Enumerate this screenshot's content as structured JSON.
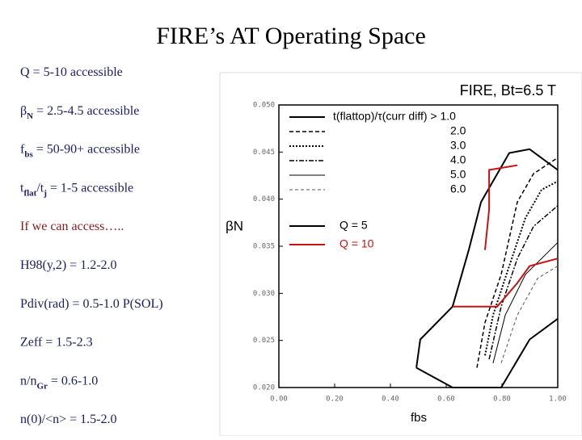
{
  "title": "FIRE’s AT Operating Space",
  "items": [
    {
      "color": "#1b1b6b",
      "parts": [
        {
          "text": "Q = 5-10 accessible"
        }
      ]
    },
    {
      "color": "#1b1b6b",
      "parts": [
        {
          "text": "β"
        },
        {
          "text": "N",
          "sub": true
        },
        {
          "text": " = 2.5-4.5 accessible"
        }
      ]
    },
    {
      "color": "#1b1b6b",
      "parts": [
        {
          "text": "f"
        },
        {
          "text": "bs",
          "sub": true
        },
        {
          "text": " = 50-90+ accessible"
        }
      ]
    },
    {
      "color": "#1b1b6b",
      "parts": [
        {
          "text": "t"
        },
        {
          "text": "flat",
          "sub": true
        },
        {
          "text": "/t"
        },
        {
          "text": "j",
          "sub": true
        },
        {
          "text": " = 1-5 accessible"
        }
      ]
    },
    {
      "color": "#8b1a1a",
      "parts": [
        {
          "text": "If we can access….."
        }
      ]
    },
    {
      "color": "#1b1b6b",
      "parts": [
        {
          "text": "H98(y,2) = 1.2-2.0"
        }
      ]
    },
    {
      "color": "#1b1b6b",
      "parts": [
        {
          "text": "Pdiv(rad) = 0.5-1.0 P(SOL)"
        }
      ]
    },
    {
      "color": "#1b1b6b",
      "parts": [
        {
          "text": "Zeff = 1.5-2.3"
        }
      ]
    },
    {
      "color": "#1b1b6b",
      "parts": [
        {
          "text": "n/n"
        },
        {
          "text": "Gr",
          "sub": true
        },
        {
          "text": " = 0.6-1.0"
        }
      ]
    },
    {
      "color": "#1b1b6b",
      "parts": [
        {
          "text": "n(0)/<n> = 1.5-2.0"
        }
      ]
    }
  ],
  "chart_data": {
    "type": "line",
    "title": "FIRE, Bt=6.5 T",
    "x_label": "fbs",
    "y_label": "βN",
    "xlim": [
      0,
      1
    ],
    "ylim": [
      0.02,
      0.05
    ],
    "xticks": [
      {
        "value": 0,
        "label": "0.00"
      },
      {
        "value": 0.2,
        "label": "0.20"
      },
      {
        "value": 0.4,
        "label": "0.40"
      },
      {
        "value": 0.6,
        "label": "0.60"
      },
      {
        "value": 0.8,
        "label": "0.80"
      },
      {
        "value": 1,
        "label": "1.00"
      }
    ],
    "yticks": [
      {
        "value": 0.02,
        "label": "0.020"
      },
      {
        "value": 0.025,
        "label": "0.025"
      },
      {
        "value": 0.03,
        "label": "0.030"
      },
      {
        "value": 0.035,
        "label": "0.035"
      },
      {
        "value": 0.04,
        "label": "0.040"
      },
      {
        "value": 0.045,
        "label": "0.045"
      },
      {
        "value": 0.05,
        "label": "0.050"
      }
    ],
    "series": [
      {
        "name": "t(flattop)/τ(curr diff) > 1.0",
        "color": "#000000",
        "style": "solid",
        "x": [
          0.493,
          0.507,
          0.623,
          0.681,
          0.725,
          0.826,
          0.899,
          1.0
        ],
        "values": [
          0.0221,
          0.0251,
          0.0286,
          0.0346,
          0.0397,
          0.0449,
          0.0453,
          0.0431
        ]
      },
      {
        "name": "2.0",
        "color": "#000000",
        "style": "dashed",
        "x": [
          0.71,
          0.739,
          0.797,
          0.855,
          0.913,
          1.0
        ],
        "values": [
          0.0221,
          0.0269,
          0.032,
          0.0397,
          0.0427,
          0.0444
        ]
      },
      {
        "name": "3.0",
        "color": "#000000",
        "style": "dotted",
        "x": [
          0.739,
          0.768,
          0.826,
          0.884,
          0.942,
          1.0
        ],
        "values": [
          0.0234,
          0.0277,
          0.0329,
          0.038,
          0.041,
          0.0419
        ]
      },
      {
        "name": "4.0",
        "color": "#000000",
        "style": "dashdot",
        "x": [
          0.754,
          0.797,
          0.855,
          0.913,
          1.0
        ],
        "values": [
          0.023,
          0.0286,
          0.0337,
          0.0371,
          0.0393
        ]
      },
      {
        "name": "5.0",
        "color": "#000000",
        "style": "thin",
        "x": [
          0.768,
          0.812,
          0.884,
          1.0
        ],
        "values": [
          0.0226,
          0.0277,
          0.032,
          0.0354
        ]
      },
      {
        "name": "6.0",
        "color": "#555555",
        "style": "thin-dashed",
        "x": [
          0.797,
          0.855,
          0.928,
          1.0
        ],
        "values": [
          0.0226,
          0.0277,
          0.0316,
          0.0329
        ]
      },
      {
        "name": "Q = 5",
        "color": "#000000",
        "style": "solid",
        "x": [
          0.493,
          0.623,
          0.797,
          0.899,
          1.0
        ],
        "values": [
          0.0221,
          0.02,
          0.02,
          0.0251,
          0.0273
        ]
      },
      {
        "name": "Q = 10",
        "color": "#cc1111",
        "style": "solid",
        "x": [
          0.623,
          0.783,
          0.855,
          0.899,
          1.0,
          null,
          0.739,
          0.754,
          0.754,
          0.855
        ],
        "values": [
          0.0286,
          0.0286,
          0.0311,
          0.0329,
          0.0337,
          null,
          0.0346,
          0.0389,
          0.0431,
          0.0436
        ]
      }
    ]
  }
}
